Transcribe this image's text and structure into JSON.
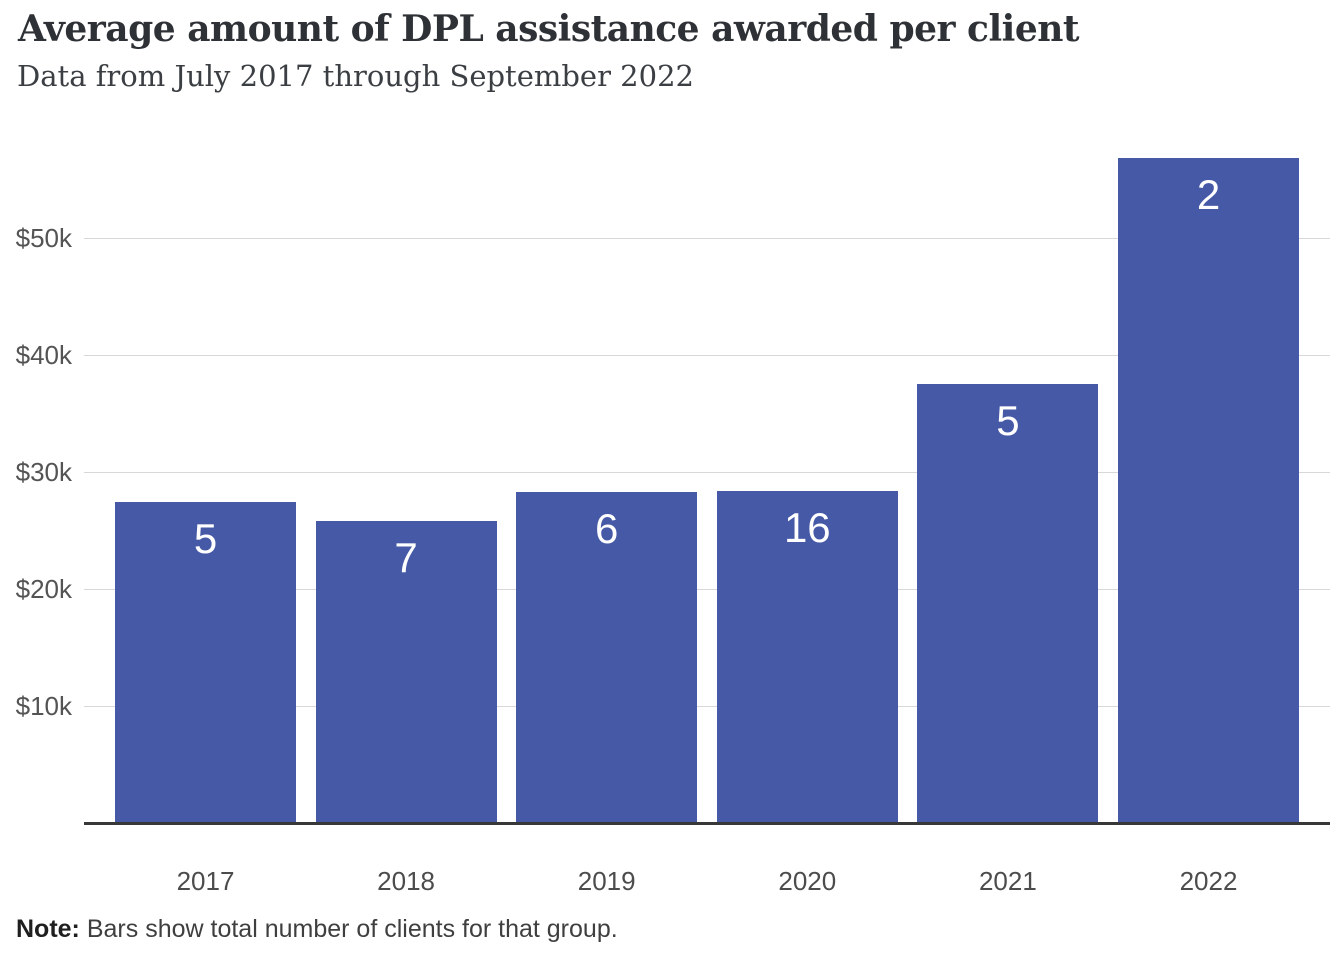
{
  "header": {
    "title": "Average amount of DPL assistance awarded per client",
    "subtitle": "Data from July 2017 through September 2022"
  },
  "footer": {
    "note_label": "Note:",
    "note_text": "Bars show total number of clients for that group."
  },
  "colors": {
    "bar_fill": "#4659a7",
    "bar_label_text": "#ffffff",
    "gridline": "#d8d8d8",
    "axis_line": "#383838",
    "title_text": "#2e3236",
    "subtitle_text": "#3b3f43",
    "y_tick_text": "#545454",
    "x_tick_text": "#4c4c4c"
  },
  "chart_data": {
    "type": "bar",
    "title": "Average amount of DPL assistance awarded per client",
    "subtitle": "Data from July 2017 through September 2022",
    "categories": [
      "2017",
      "2018",
      "2019",
      "2020",
      "2021",
      "2022"
    ],
    "values": [
      27450,
      25850,
      28300,
      28400,
      37500,
      56800
    ],
    "bar_labels": [
      "5",
      "7",
      "6",
      "16",
      "5",
      "2"
    ],
    "y_ticks": [
      {
        "label": "$10k",
        "value": 10000
      },
      {
        "label": "$20k",
        "value": 20000
      },
      {
        "label": "$30k",
        "value": 30000
      },
      {
        "label": "$40k",
        "value": 40000
      },
      {
        "label": "$50k",
        "value": 50000
      }
    ],
    "unit": "USD",
    "xlabel": "",
    "ylabel": "",
    "ylim": [
      0,
      58400
    ],
    "grid": "horizontal-only",
    "legend": "none",
    "note": "Note: Bars show total number of clients for that group."
  }
}
